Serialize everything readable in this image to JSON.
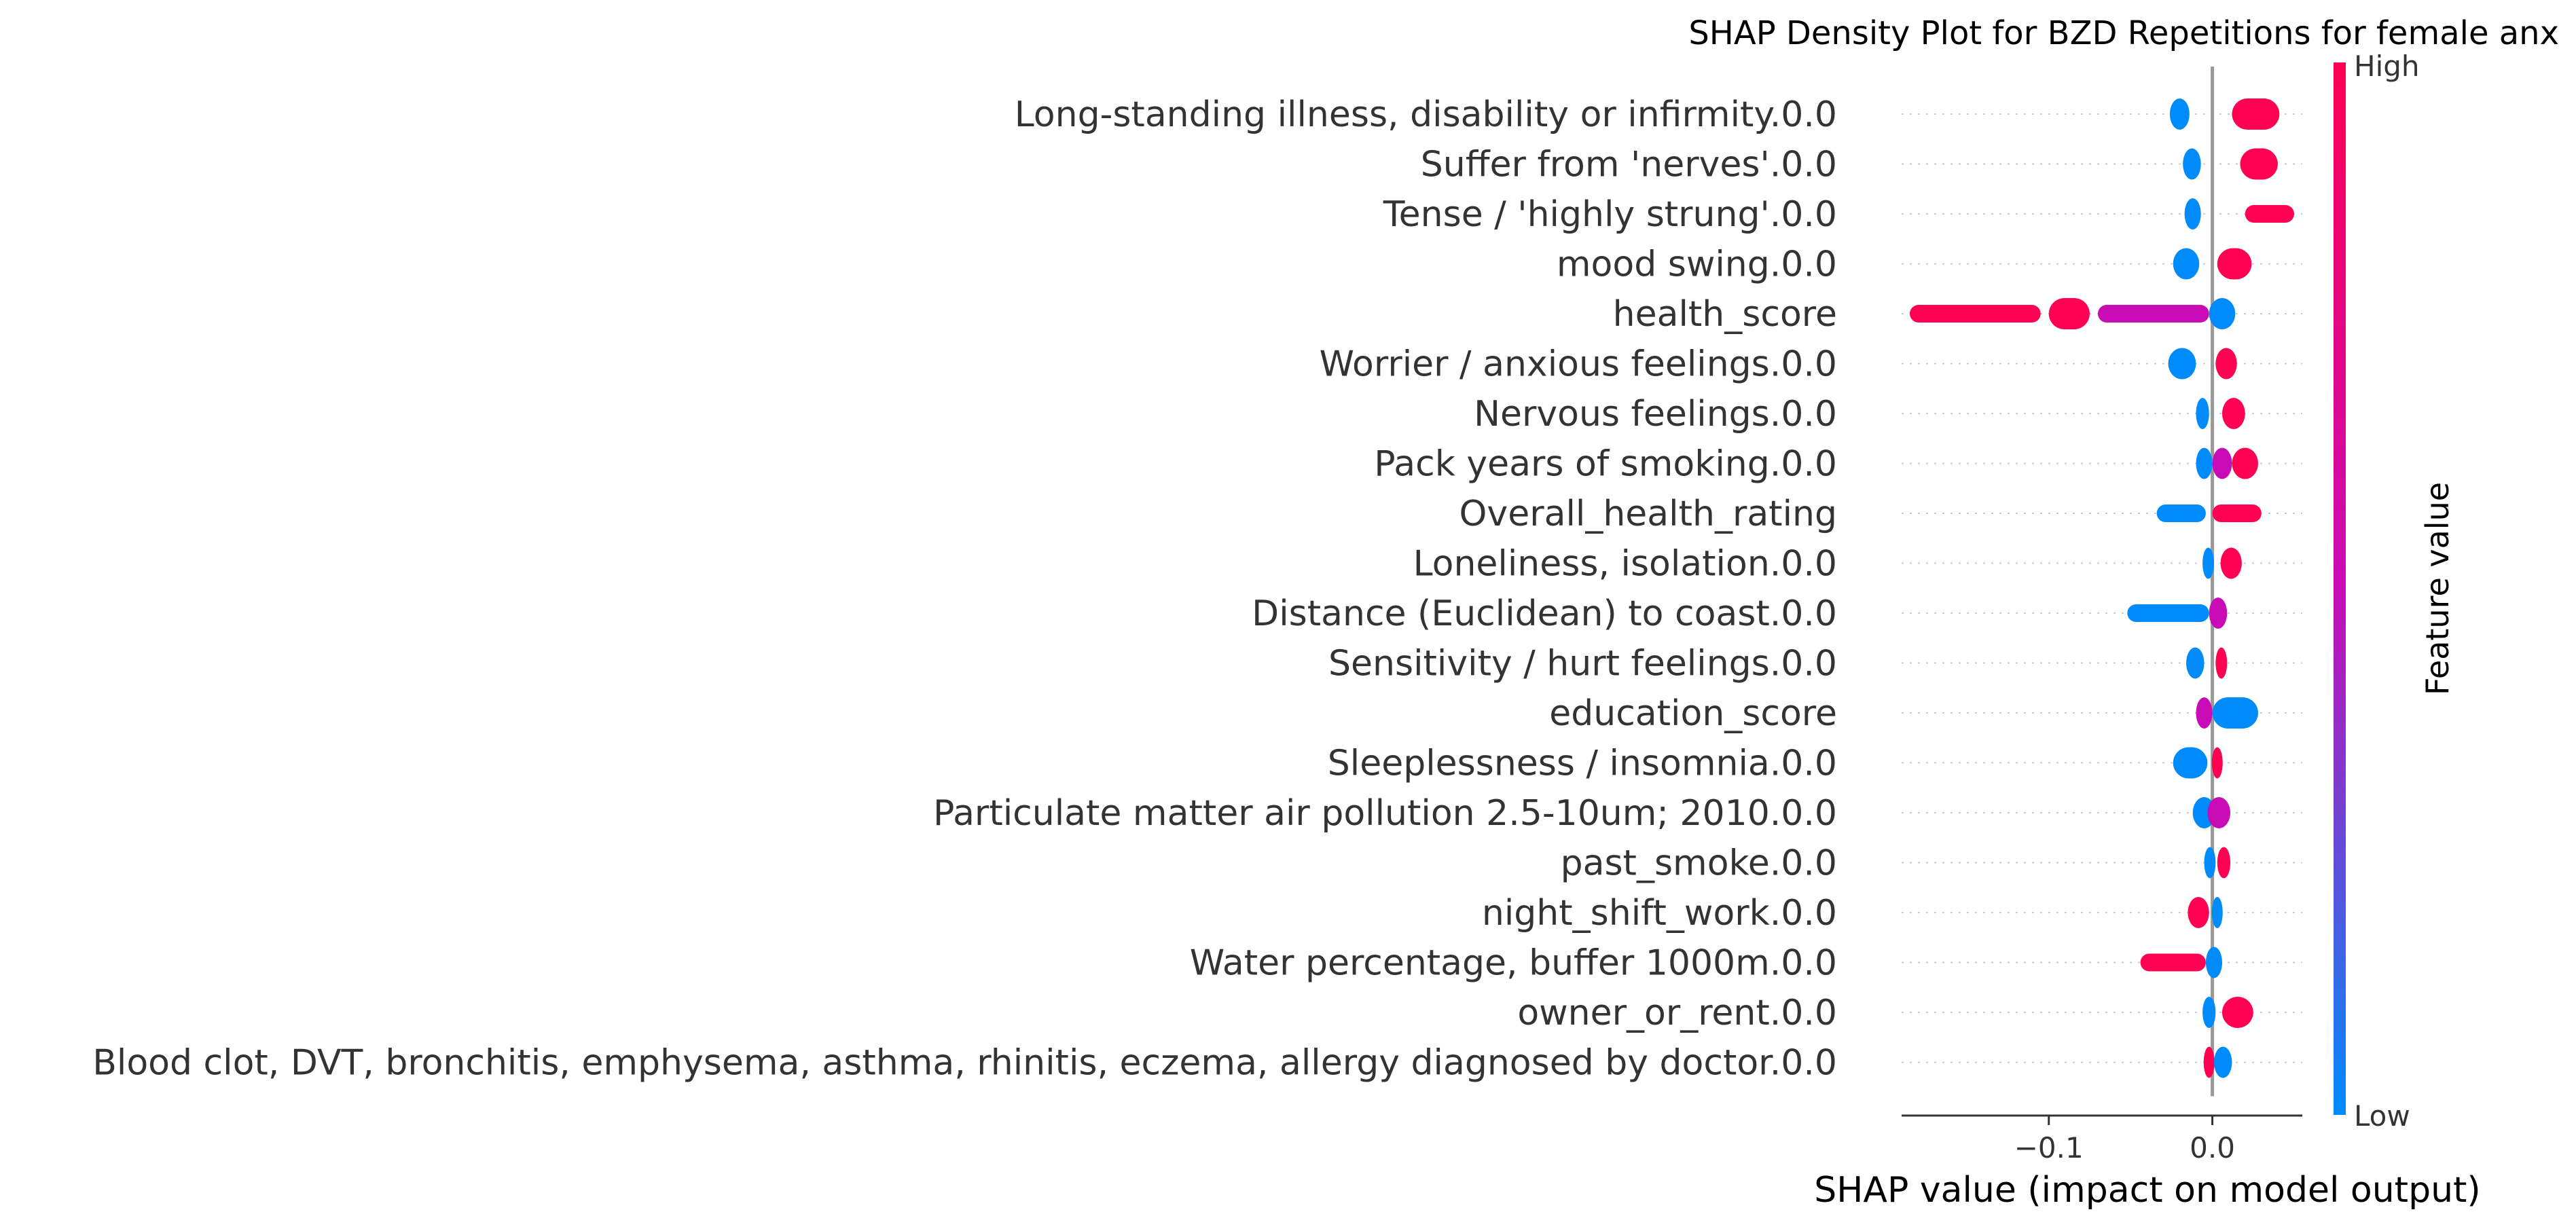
{
  "chart_data": {
    "type": "scatter",
    "subtype": "shap-beeswarm",
    "title": "SHAP Density Plot for BZD Repetitions for female anx",
    "xlabel": "SHAP value (impact on model output)",
    "xlim": [
      -0.19,
      0.055
    ],
    "xticks": [
      -0.1,
      0.0
    ],
    "xtick_labels": [
      "−0.1",
      "0.0"
    ],
    "zero_line": true,
    "grid": "horizontal dotted row guides",
    "colorbar": {
      "label": "Feature value",
      "high_label": "High",
      "low_label": "Low",
      "low_color": "#008bfb",
      "mid_color": "#c80bb5",
      "high_color": "#ff0052"
    },
    "features": [
      {
        "name": "Long-standing illness, disability or infirmity.0.0",
        "clusters": [
          {
            "min": -0.026,
            "max": -0.014,
            "color": "low"
          },
          {
            "min": 0.012,
            "max": 0.041,
            "color": "high"
          }
        ]
      },
      {
        "name": "Suffer from 'nerves'.0.0",
        "clusters": [
          {
            "min": -0.018,
            "max": -0.007,
            "color": "low"
          },
          {
            "min": 0.017,
            "max": 0.04,
            "color": "high"
          }
        ]
      },
      {
        "name": "Tense / 'highly strung'.0.0",
        "clusters": [
          {
            "min": -0.017,
            "max": -0.007,
            "color": "low"
          },
          {
            "min": 0.02,
            "max": 0.05,
            "color": "high"
          }
        ]
      },
      {
        "name": "mood swing.0.0",
        "clusters": [
          {
            "min": -0.024,
            "max": -0.008,
            "color": "low"
          },
          {
            "min": 0.003,
            "max": 0.024,
            "color": "high"
          }
        ]
      },
      {
        "name": "health_score",
        "clusters": [
          {
            "min": -0.185,
            "max": -0.105,
            "color": "high"
          },
          {
            "min": -0.1,
            "max": -0.075,
            "color": "high"
          },
          {
            "min": -0.07,
            "max": -0.002,
            "color": "mid"
          },
          {
            "min": -0.002,
            "max": 0.014,
            "color": "low"
          }
        ]
      },
      {
        "name": "Worrier / anxious feelings.0.0",
        "clusters": [
          {
            "min": -0.027,
            "max": -0.01,
            "color": "low"
          },
          {
            "min": 0.002,
            "max": 0.015,
            "color": "high"
          }
        ]
      },
      {
        "name": "Nervous feelings.0.0",
        "clusters": [
          {
            "min": -0.01,
            "max": -0.002,
            "color": "low"
          },
          {
            "min": 0.006,
            "max": 0.02,
            "color": "high"
          }
        ]
      },
      {
        "name": "Pack years of smoking.0.0",
        "clusters": [
          {
            "min": -0.01,
            "max": 0.0,
            "color": "low"
          },
          {
            "min": 0.0,
            "max": 0.012,
            "color": "mid"
          },
          {
            "min": 0.012,
            "max": 0.028,
            "color": "high"
          }
        ]
      },
      {
        "name": "Overall_health_rating",
        "clusters": [
          {
            "min": -0.034,
            "max": -0.004,
            "color": "low"
          },
          {
            "min": 0.0,
            "max": 0.03,
            "color": "high"
          }
        ]
      },
      {
        "name": "Loneliness, isolation.0.0",
        "clusters": [
          {
            "min": -0.006,
            "max": 0.001,
            "color": "low"
          },
          {
            "min": 0.005,
            "max": 0.018,
            "color": "high"
          }
        ]
      },
      {
        "name": "Distance (Euclidean) to coast.0.0",
        "clusters": [
          {
            "min": -0.052,
            "max": -0.002,
            "color": "low"
          },
          {
            "min": -0.002,
            "max": 0.009,
            "color": "mid"
          }
        ]
      },
      {
        "name": "Sensitivity / hurt feelings.0.0",
        "clusters": [
          {
            "min": -0.016,
            "max": -0.005,
            "color": "low"
          },
          {
            "min": 0.002,
            "max": 0.009,
            "color": "high"
          }
        ]
      },
      {
        "name": "education_score",
        "clusters": [
          {
            "min": -0.01,
            "max": 0.0,
            "color": "mid"
          },
          {
            "min": 0.0,
            "max": 0.028,
            "color": "low"
          }
        ]
      },
      {
        "name": "Sleeplessness / insomnia.0.0",
        "clusters": [
          {
            "min": -0.024,
            "max": -0.003,
            "color": "low"
          },
          {
            "min": 0.0,
            "max": 0.006,
            "color": "high"
          }
        ]
      },
      {
        "name": "Particulate matter air pollution 2.5-10um; 2010.0.0",
        "clusters": [
          {
            "min": -0.012,
            "max": 0.002,
            "color": "low"
          },
          {
            "min": -0.003,
            "max": 0.011,
            "color": "mid"
          }
        ]
      },
      {
        "name": "past_smoke.0.0",
        "clusters": [
          {
            "min": -0.005,
            "max": 0.002,
            "color": "low"
          },
          {
            "min": 0.003,
            "max": 0.011,
            "color": "high"
          }
        ]
      },
      {
        "name": "night_shift_work.0.0",
        "clusters": [
          {
            "min": -0.015,
            "max": -0.002,
            "color": "high"
          },
          {
            "min": 0.0,
            "max": 0.006,
            "color": "low"
          }
        ]
      },
      {
        "name": "Water percentage, buffer 1000m.0.0",
        "clusters": [
          {
            "min": -0.044,
            "max": -0.004,
            "color": "high"
          },
          {
            "min": -0.004,
            "max": 0.006,
            "color": "low"
          }
        ]
      },
      {
        "name": "owner_or_rent.0.0",
        "clusters": [
          {
            "min": -0.006,
            "max": 0.002,
            "color": "low"
          },
          {
            "min": 0.006,
            "max": 0.025,
            "color": "high"
          }
        ]
      },
      {
        "name": "Blood clot, DVT, bronchitis, emphysema, asthma, rhinitis, eczema, allergy diagnosed by doctor.0.0",
        "clusters": [
          {
            "min": -0.005,
            "max": 0.001,
            "color": "high"
          },
          {
            "min": 0.001,
            "max": 0.012,
            "color": "low"
          }
        ]
      }
    ]
  }
}
